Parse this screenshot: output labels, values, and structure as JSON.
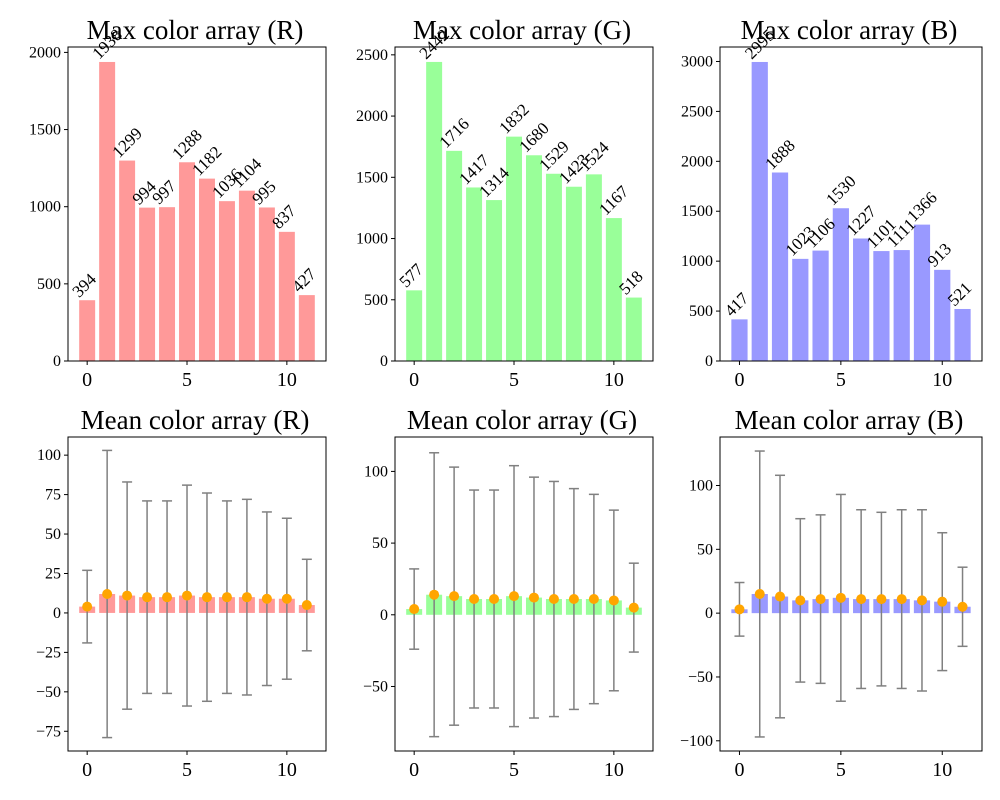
{
  "chart_data": [
    {
      "type": "bar",
      "title": "Max color array (R)",
      "color": "#ff9999",
      "x": [
        0,
        1,
        2,
        3,
        4,
        5,
        6,
        7,
        8,
        9,
        10,
        11
      ],
      "values": [
        394,
        1938,
        1299,
        994,
        997,
        1288,
        1182,
        1036,
        1104,
        995,
        837,
        427
      ],
      "data_labels": [
        "394",
        "1938",
        "1299",
        "994",
        "997",
        "1288",
        "1182",
        "1036",
        "1104",
        "995",
        "837",
        "427"
      ],
      "xlim": [
        -0.96,
        11.96
      ],
      "ylim": [
        0,
        2035
      ],
      "xticks": [
        0,
        5,
        10
      ],
      "xtick_labels": [
        "0",
        "5",
        "10"
      ],
      "yticks": [
        0,
        500,
        1000,
        1500,
        2000
      ],
      "ytick_labels": [
        "0",
        "500",
        "1000",
        "1500",
        "2000"
      ]
    },
    {
      "type": "bar",
      "title": "Max color array (G)",
      "color": "#99ff99",
      "x": [
        0,
        1,
        2,
        3,
        4,
        5,
        6,
        7,
        8,
        9,
        10,
        11
      ],
      "values": [
        577,
        2442,
        1716,
        1417,
        1314,
        1832,
        1680,
        1529,
        1423,
        1524,
        1167,
        518
      ],
      "data_labels": [
        "577",
        "2442",
        "1716",
        "1417",
        "1314",
        "1832",
        "1680",
        "1529",
        "1423",
        "1524",
        "1167",
        "518"
      ],
      "xlim": [
        -0.96,
        11.96
      ],
      "ylim": [
        0,
        2564
      ],
      "xticks": [
        0,
        5,
        10
      ],
      "xtick_labels": [
        "0",
        "5",
        "10"
      ],
      "yticks": [
        0,
        500,
        1000,
        1500,
        2000,
        2500
      ],
      "ytick_labels": [
        "0",
        "500",
        "1000",
        "1500",
        "2000",
        "2500"
      ]
    },
    {
      "type": "bar",
      "title": "Max color array (B)",
      "color": "#9999ff",
      "x": [
        0,
        1,
        2,
        3,
        4,
        5,
        6,
        7,
        8,
        9,
        10,
        11
      ],
      "values": [
        417,
        2995,
        1888,
        1023,
        1106,
        1530,
        1227,
        1101,
        1111,
        1366,
        913,
        521
      ],
      "data_labels": [
        "417",
        "2995",
        "1888",
        "1023",
        "1106",
        "1530",
        "1227",
        "1101",
        "1111",
        "1366",
        "913",
        "521"
      ],
      "xlim": [
        -0.96,
        11.96
      ],
      "ylim": [
        0,
        3145
      ],
      "xticks": [
        0,
        5,
        10
      ],
      "xtick_labels": [
        "0",
        "5",
        "10"
      ],
      "yticks": [
        0,
        500,
        1000,
        1500,
        2000,
        2500,
        3000
      ],
      "ytick_labels": [
        "0",
        "500",
        "1000",
        "1500",
        "2000",
        "2500",
        "3000"
      ]
    },
    {
      "type": "bar",
      "title": "Mean color array (R)",
      "color": "#ff9999",
      "errorbar_color": "#808080",
      "marker_color": "#ffa500",
      "x": [
        0,
        1,
        2,
        3,
        4,
        5,
        6,
        7,
        8,
        9,
        10,
        11
      ],
      "values": [
        4,
        12,
        11,
        10,
        10,
        11,
        10,
        10,
        10,
        9,
        9,
        5
      ],
      "errors": [
        23,
        91,
        72,
        61,
        61,
        70,
        66,
        61,
        62,
        55,
        51,
        29
      ],
      "xlim": [
        -0.96,
        11.96
      ],
      "ylim": [
        -87.5,
        111.5
      ],
      "xticks": [
        0,
        5,
        10
      ],
      "xtick_labels": [
        "0",
        "5",
        "10"
      ],
      "yticks": [
        -75,
        -50,
        -25,
        0,
        25,
        50,
        75,
        100
      ],
      "ytick_labels": [
        "−75",
        "−50",
        "−25",
        "0",
        "25",
        "50",
        "75",
        "100"
      ]
    },
    {
      "type": "bar",
      "title": "Mean color array (G)",
      "color": "#99ff99",
      "errorbar_color": "#808080",
      "marker_color": "#ffa500",
      "x": [
        0,
        1,
        2,
        3,
        4,
        5,
        6,
        7,
        8,
        9,
        10,
        11
      ],
      "values": [
        4,
        14,
        13,
        11,
        11,
        13,
        12,
        11,
        11,
        11,
        10,
        5
      ],
      "errors": [
        28,
        99,
        90,
        76,
        76,
        91,
        84,
        82,
        77,
        73,
        63,
        31
      ],
      "xlim": [
        -0.96,
        11.96
      ],
      "ylim": [
        -95,
        124
      ],
      "xticks": [
        0,
        5,
        10
      ],
      "xtick_labels": [
        "0",
        "5",
        "10"
      ],
      "yticks": [
        -50,
        0,
        50,
        100
      ],
      "ytick_labels": [
        "−50",
        "0",
        "50",
        "100"
      ]
    },
    {
      "type": "bar",
      "title": "Mean color array (B)",
      "color": "#9999ff",
      "errorbar_color": "#808080",
      "marker_color": "#ffa500",
      "x": [
        0,
        1,
        2,
        3,
        4,
        5,
        6,
        7,
        8,
        9,
        10,
        11
      ],
      "values": [
        3,
        15,
        13,
        10,
        11,
        12,
        11,
        11,
        11,
        10,
        9,
        5
      ],
      "errors": [
        21,
        112,
        95,
        64,
        66,
        81,
        70,
        68,
        70,
        71,
        54,
        31
      ],
      "xlim": [
        -0.96,
        11.96
      ],
      "ylim": [
        -108,
        138
      ],
      "xticks": [
        0,
        5,
        10
      ],
      "xtick_labels": [
        "0",
        "5",
        "10"
      ],
      "yticks": [
        -100,
        -50,
        0,
        50,
        100
      ],
      "ytick_labels": [
        "−100",
        "−50",
        "0",
        "50",
        "100"
      ]
    }
  ]
}
